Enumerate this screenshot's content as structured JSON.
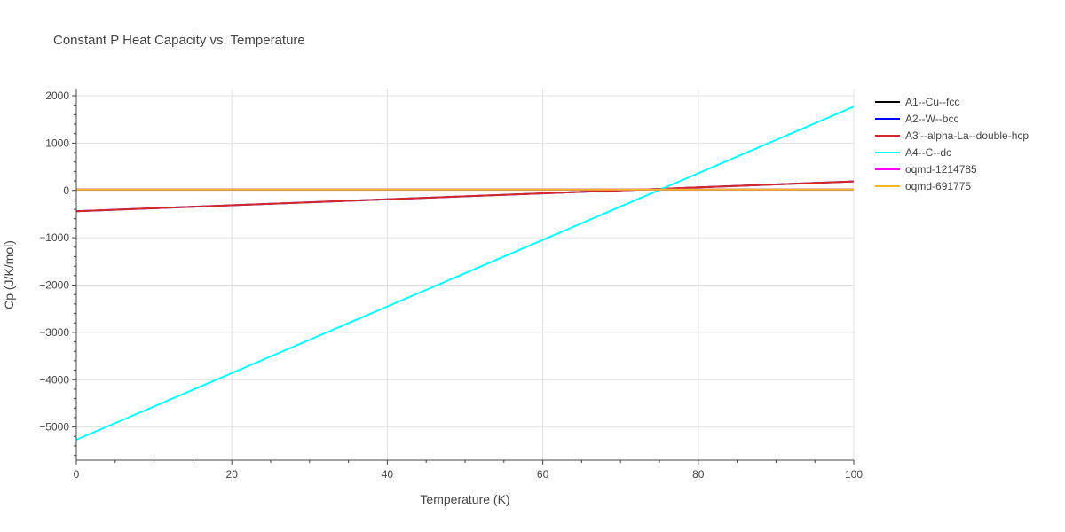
{
  "chart_data": {
    "type": "line",
    "title": "Constant P Heat Capacity vs. Temperature",
    "xlabel": "Temperature (K)",
    "ylabel": "Cp (J/K/mol)",
    "xlim": [
      0,
      100
    ],
    "ylim": [
      -5700,
      2150
    ],
    "xticks": [
      0,
      20,
      40,
      60,
      80,
      100
    ],
    "yticks": [
      2000,
      1000,
      0,
      -1000,
      -2000,
      -3000,
      -4000,
      -5000
    ],
    "ytick_labels": [
      "2000",
      "1000",
      "0",
      "−1000",
      "−2000",
      "−3000",
      "−4000",
      "−5000"
    ],
    "grid": true,
    "legend_position": "right",
    "series": [
      {
        "name": "A1--Cu--fcc",
        "color": "#000000",
        "x": [
          0,
          100
        ],
        "y": [
          20,
          20
        ]
      },
      {
        "name": "A2--W--bcc",
        "color": "#0000ff",
        "x": [
          0,
          100
        ],
        "y": [
          -440,
          190
        ]
      },
      {
        "name": "A3'--alpha-La--double-hcp",
        "color": "#d62728",
        "x": [
          0,
          100
        ],
        "y": [
          -440,
          190
        ]
      },
      {
        "name": "A4--C--dc",
        "color": "#00ffff",
        "x": [
          0,
          100
        ],
        "y": [
          -5270,
          1770
        ]
      },
      {
        "name": "oqmd-1214785",
        "color": "#ff00ff",
        "x": [
          0,
          100
        ],
        "y": [
          20,
          20
        ]
      },
      {
        "name": "oqmd-691775",
        "color": "#f2b824",
        "x": [
          0,
          100
        ],
        "y": [
          20,
          20
        ]
      }
    ]
  }
}
